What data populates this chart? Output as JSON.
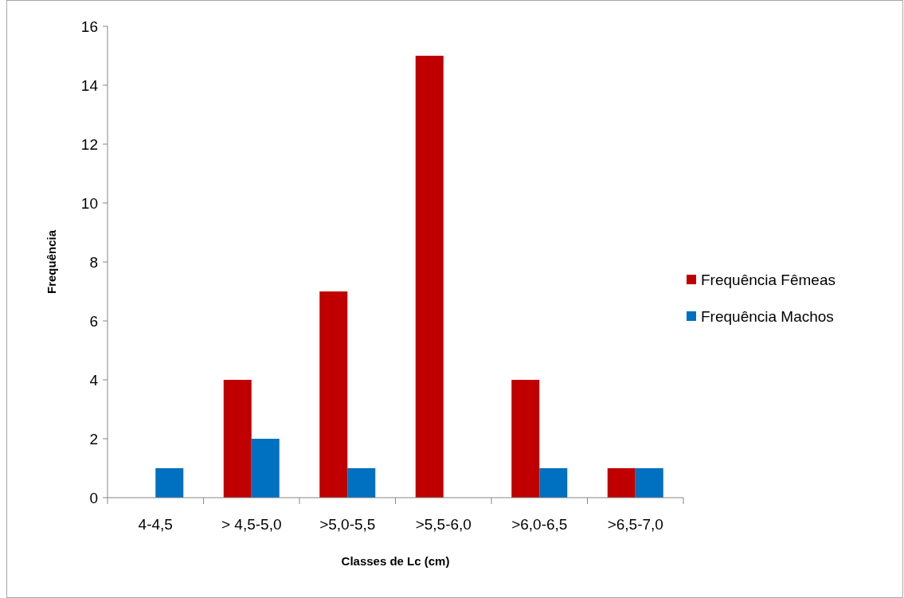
{
  "chart_data": {
    "type": "bar",
    "xlabel": "Classes de Lc (cm)",
    "ylabel": "Frequência",
    "categories": [
      "4-4,5",
      "> 4,5-5,0",
      ">5,0-5,5",
      ">5,5-6,0",
      ">6,0-6,5",
      ">6,5-7,0"
    ],
    "series": [
      {
        "name": "Frequência Fêmeas",
        "color": "#c00000",
        "values": [
          0,
          4,
          7,
          15,
          4,
          1
        ]
      },
      {
        "name": "Frequência Machos",
        "color": "#0070c0",
        "values": [
          1,
          2,
          1,
          0,
          1,
          1
        ]
      }
    ],
    "ylim": [
      0,
      16
    ],
    "yticks": [
      0,
      2,
      4,
      6,
      8,
      10,
      12,
      14,
      16
    ],
    "grid": false,
    "legend": "right"
  }
}
